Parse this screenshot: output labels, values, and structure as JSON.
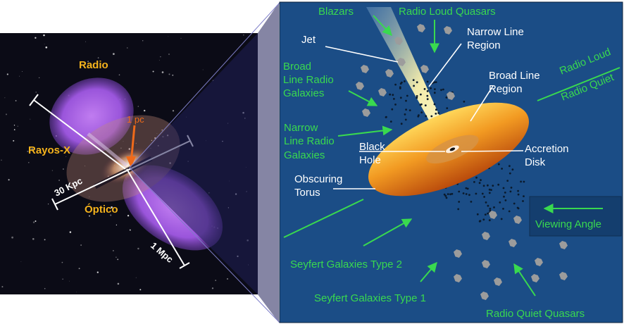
{
  "left_panel": {
    "labels": {
      "radio": "Radio",
      "xray": "Rayos-X",
      "optical": "Óptico",
      "pc": "1 pc",
      "kpc": "30 Kpc",
      "mpc": "1 Mpc"
    },
    "colors": {
      "label_yellow": "#f5b31c",
      "pc_orange": "#ef6a1a",
      "lobe_purple": "#a15ee0",
      "sky": "#0b0b16"
    }
  },
  "right_panel": {
    "labels": {
      "blazars": "Blazars",
      "radio_loud_quasars": "Radio Loud Quasars",
      "jet": "Jet",
      "narrow_line_region": [
        "Narrow Line",
        "Region"
      ],
      "broad_line_radio_galaxies": [
        "Broad",
        "Line Radio",
        "Galaxies"
      ],
      "radio_loud": "Radio Loud",
      "radio_quiet": "Radio Quiet",
      "broad_line_region": [
        "Broad Line",
        "Region"
      ],
      "narrow_line_radio_galaxies": [
        "Narrow",
        "Line Radio",
        "Galaxies"
      ],
      "black_hole": [
        "Black",
        "Hole"
      ],
      "accretion_disk": [
        "Accretion",
        "Disk"
      ],
      "obscuring_torus": [
        "Obscuring",
        "Torus"
      ],
      "viewing_angle": "Viewing Angle",
      "seyfert_2": "Seyfert Galaxies Type 2",
      "seyfert_1": "Seyfert Galaxies Type 1",
      "radio_quiet_quasars": "Radio Quiet Quasars"
    },
    "colors": {
      "background": "#1b4d86",
      "green": "#39d94f",
      "white": "#ffffff",
      "torus": "#e8801a",
      "cloud": "#9c9c9c"
    }
  }
}
